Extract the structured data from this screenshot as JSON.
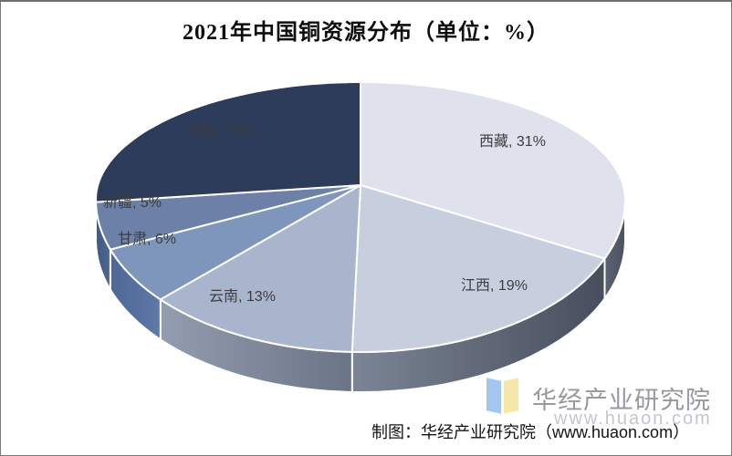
{
  "page": {
    "background": "#ffffff",
    "border_color": "#7a7a7a"
  },
  "chart_data": {
    "type": "pie",
    "style": "3d",
    "title": "2021年中国铜资源分布（单位：%）",
    "unit": "%",
    "direction": "clockwise",
    "start_angle_deg": 0,
    "labels_on_chart": true,
    "legend": "none",
    "slices": [
      {
        "name": "西藏",
        "value": 31,
        "label": "西藏, 31%",
        "color": "#dfe2ec",
        "side_from": "#5c6373",
        "side_to": "#4b5261"
      },
      {
        "name": "江西",
        "value": 19,
        "label": "江西, 19%",
        "color": "#c7cfdf",
        "side_from": "#7c8595",
        "side_to": "#474e5d"
      },
      {
        "name": "云南",
        "value": 13,
        "label": "云南, 13%",
        "color": "#a9b5cc",
        "side_from": "#939daf",
        "side_to": "#6b7487"
      },
      {
        "name": "甘肃",
        "value": 6,
        "label": "甘肃, 6%",
        "color": "#7e96bb",
        "side_from": "#4e6896",
        "side_to": "#5d79a6"
      },
      {
        "name": "新疆",
        "value": 5,
        "label": "新疆, 5%",
        "color": "#6c80a8",
        "side_from": "#415a84",
        "side_to": "#4c6793"
      },
      {
        "name": "其他",
        "value": 25,
        "label": "其他, 25%",
        "color": "#2d3c5a",
        "side_from": "#263450",
        "side_to": "#2a3856"
      }
    ],
    "label_color": "#3d3d3d",
    "separator_color": "#ffffff"
  },
  "footer": {
    "attribution": "制图：华经产业研究院（www.huaon.com）"
  },
  "watermark": {
    "brand": "华经产业研究院",
    "url": "www.huaon.com",
    "logo_left_color": "#a5c6ef",
    "logo_right_color": "#f6e8a9"
  }
}
